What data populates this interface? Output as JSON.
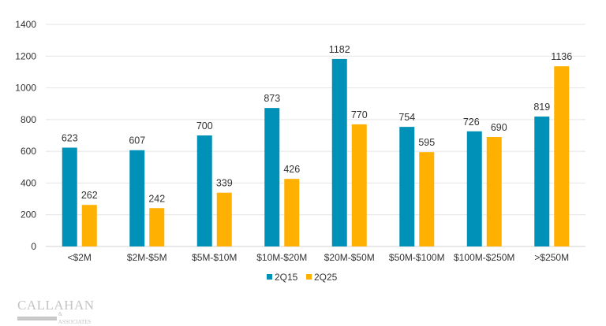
{
  "chart_data": {
    "type": "bar",
    "title": "",
    "xlabel": "",
    "ylabel": "",
    "categories": [
      "<$2M",
      "$2M-$5M",
      "$5M-$10M",
      "$10M-$20M",
      "$20M-$50M",
      "$50M-$100M",
      "$100M-$250M",
      ">$250M"
    ],
    "series": [
      {
        "name": "2Q15",
        "color": "#0091B8",
        "values": [
          623,
          607,
          700,
          873,
          1182,
          754,
          726,
          819
        ]
      },
      {
        "name": "2Q25",
        "color": "#FFB000",
        "values": [
          262,
          242,
          339,
          426,
          770,
          595,
          690,
          1136
        ]
      }
    ],
    "ylim": [
      0,
      1400
    ],
    "yticks": [
      0,
      200,
      400,
      600,
      800,
      1000,
      1200,
      1400
    ],
    "grid": true,
    "data_labels": true,
    "legend_position": "bottom"
  },
  "logo": {
    "name": "CALLAHAN",
    "sub": "& ASSOCIATES"
  }
}
